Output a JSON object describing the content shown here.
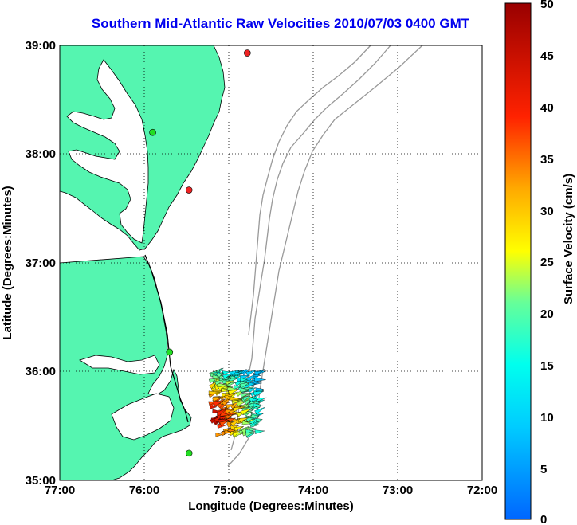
{
  "title": "Southern Mid-Atlantic Raw Velocities 2010/07/03 0400 GMT",
  "axes": {
    "xlabel": "Longitude (Degrees:Minutes)",
    "ylabel": "Latitude (Degrees:Minutes)",
    "xticks": [
      "77:00",
      "76:00",
      "75:00",
      "74:00",
      "73:00",
      "72:00"
    ],
    "yticks": [
      "39:00",
      "38:00",
      "37:00",
      "36:00",
      "35:00"
    ]
  },
  "colorbar": {
    "label": "Surface Velocity (cm/s)",
    "ticks": [
      "50",
      "45",
      "40",
      "35",
      "30",
      "25",
      "20",
      "15",
      "10",
      "5",
      "0"
    ],
    "min": 0,
    "max": 50
  },
  "colors": {
    "land": "#55f5b0",
    "coastline": "#000000",
    "bathymetry": "#999999",
    "grid": "#000000",
    "title": "#0000ee",
    "station_green": "#22dd22",
    "station_red": "#ee2222"
  },
  "extent": {
    "lon_min": -77,
    "lon_max": -72,
    "lat_min": 35,
    "lat_max": 39
  },
  "stations": [
    {
      "lon": -74.78,
      "lat": 38.93,
      "color": "red"
    },
    {
      "lon": -75.9,
      "lat": 38.2,
      "color": "green"
    },
    {
      "lon": -75.47,
      "lat": 37.67,
      "color": "red"
    },
    {
      "lon": -75.7,
      "lat": 36.18,
      "color": "green"
    },
    {
      "lon": -75.47,
      "lat": 35.25,
      "color": "green"
    }
  ]
}
